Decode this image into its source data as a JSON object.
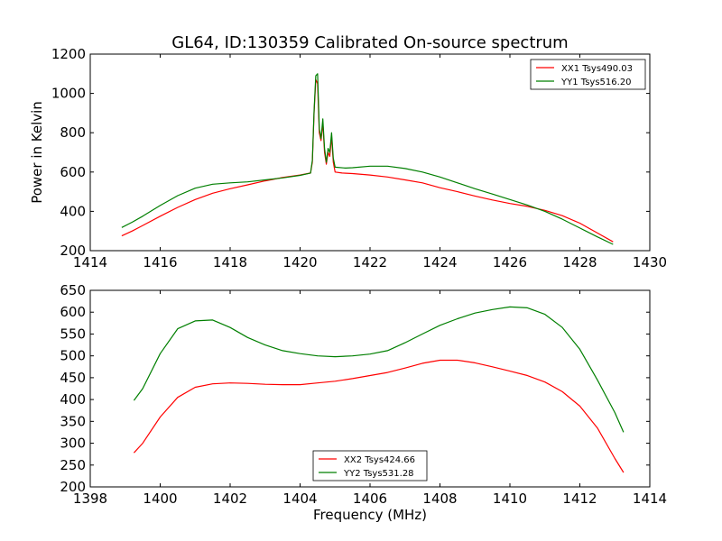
{
  "title": "GL64, ID:130359 Calibrated On-source spectrum",
  "colors": {
    "red": "#ff0000",
    "green": "#007f00"
  },
  "chart_data": [
    {
      "type": "line",
      "xlabel": "",
      "ylabel": "Power in Kelvin",
      "xlim": [
        1414,
        1430
      ],
      "ylim": [
        200,
        1200
      ],
      "xticks": [
        "1414",
        "1416",
        "1418",
        "1420",
        "1422",
        "1424",
        "1426",
        "1428",
        "1430"
      ],
      "yticks": [
        "200",
        "400",
        "600",
        "800",
        "1000",
        "1200"
      ],
      "legend_position": "upper right",
      "series": [
        {
          "name": "XX1 Tsys490.03",
          "color": "#ff0000",
          "points": [
            [
              1414.9,
              275
            ],
            [
              1415.2,
              300
            ],
            [
              1415.5,
              328
            ],
            [
              1416,
              375
            ],
            [
              1416.5,
              420
            ],
            [
              1417,
              460
            ],
            [
              1417.5,
              492
            ],
            [
              1418,
              515
            ],
            [
              1418.5,
              535
            ],
            [
              1419,
              555
            ],
            [
              1419.5,
              572
            ],
            [
              1420,
              585
            ],
            [
              1420.3,
              595
            ],
            [
              1420.35,
              650
            ],
            [
              1420.4,
              900
            ],
            [
              1420.45,
              1070
            ],
            [
              1420.5,
              1050
            ],
            [
              1420.55,
              800
            ],
            [
              1420.6,
              760
            ],
            [
              1420.65,
              850
            ],
            [
              1420.7,
              700
            ],
            [
              1420.75,
              640
            ],
            [
              1420.8,
              700
            ],
            [
              1420.85,
              680
            ],
            [
              1420.9,
              780
            ],
            [
              1420.95,
              650
            ],
            [
              1421,
              600
            ],
            [
              1421.2,
              595
            ],
            [
              1421.5,
              592
            ],
            [
              1422,
              585
            ],
            [
              1422.5,
              575
            ],
            [
              1423,
              560
            ],
            [
              1423.5,
              545
            ],
            [
              1424,
              520
            ],
            [
              1424.5,
              500
            ],
            [
              1425,
              478
            ],
            [
              1425.5,
              458
            ],
            [
              1426,
              440
            ],
            [
              1426.5,
              425
            ],
            [
              1427,
              405
            ],
            [
              1427.5,
              378
            ],
            [
              1428,
              340
            ],
            [
              1428.5,
              290
            ],
            [
              1428.95,
              245
            ]
          ]
        },
        {
          "name": "YY1 Tsys516.20",
          "color": "#007f00",
          "points": [
            [
              1414.9,
              318
            ],
            [
              1415.2,
              345
            ],
            [
              1415.5,
              375
            ],
            [
              1416,
              430
            ],
            [
              1416.5,
              480
            ],
            [
              1417,
              518
            ],
            [
              1417.5,
              538
            ],
            [
              1418,
              545
            ],
            [
              1418.5,
              550
            ],
            [
              1419,
              560
            ],
            [
              1419.5,
              570
            ],
            [
              1420,
              583
            ],
            [
              1420.3,
              595
            ],
            [
              1420.35,
              660
            ],
            [
              1420.4,
              910
            ],
            [
              1420.45,
              1090
            ],
            [
              1420.5,
              1100
            ],
            [
              1420.55,
              820
            ],
            [
              1420.6,
              770
            ],
            [
              1420.65,
              870
            ],
            [
              1420.7,
              720
            ],
            [
              1420.75,
              650
            ],
            [
              1420.8,
              720
            ],
            [
              1420.85,
              700
            ],
            [
              1420.9,
              800
            ],
            [
              1420.95,
              670
            ],
            [
              1421,
              625
            ],
            [
              1421.3,
              620
            ],
            [
              1421.5,
              622
            ],
            [
              1422,
              630
            ],
            [
              1422.5,
              630
            ],
            [
              1423,
              618
            ],
            [
              1423.5,
              600
            ],
            [
              1424,
              575
            ],
            [
              1424.5,
              545
            ],
            [
              1425,
              515
            ],
            [
              1425.5,
              488
            ],
            [
              1426,
              460
            ],
            [
              1426.5,
              432
            ],
            [
              1427,
              400
            ],
            [
              1427.5,
              360
            ],
            [
              1428,
              315
            ],
            [
              1428.5,
              270
            ],
            [
              1428.95,
              232
            ]
          ]
        }
      ]
    },
    {
      "type": "line",
      "xlabel": "Frequency (MHz)",
      "ylabel": "",
      "xlim": [
        1398,
        1414
      ],
      "ylim": [
        200,
        650
      ],
      "xticks": [
        "1398",
        "1400",
        "1402",
        "1404",
        "1406",
        "1408",
        "1410",
        "1412",
        "1414"
      ],
      "yticks": [
        "200",
        "250",
        "300",
        "350",
        "400",
        "450",
        "500",
        "550",
        "600",
        "650"
      ],
      "legend_position": "lower center",
      "series": [
        {
          "name": "XX2 Tsys424.66",
          "color": "#ff0000",
          "points": [
            [
              1399.25,
              278
            ],
            [
              1399.5,
              300
            ],
            [
              1400,
              360
            ],
            [
              1400.5,
              405
            ],
            [
              1401,
              428
            ],
            [
              1401.5,
              436
            ],
            [
              1402,
              438
            ],
            [
              1402.5,
              437
            ],
            [
              1403,
              435
            ],
            [
              1403.5,
              434
            ],
            [
              1404,
              434
            ],
            [
              1404.5,
              438
            ],
            [
              1405,
              442
            ],
            [
              1405.5,
              448
            ],
            [
              1406,
              455
            ],
            [
              1406.5,
              462
            ],
            [
              1407,
              472
            ],
            [
              1407.5,
              483
            ],
            [
              1408,
              490
            ],
            [
              1408.5,
              490
            ],
            [
              1409,
              484
            ],
            [
              1409.5,
              475
            ],
            [
              1410,
              465
            ],
            [
              1410.5,
              455
            ],
            [
              1411,
              440
            ],
            [
              1411.5,
              418
            ],
            [
              1412,
              385
            ],
            [
              1412.5,
              335
            ],
            [
              1413,
              265
            ],
            [
              1413.25,
              233
            ]
          ]
        },
        {
          "name": "YY2 Tsys531.28",
          "color": "#007f00",
          "points": [
            [
              1399.25,
              398
            ],
            [
              1399.5,
              425
            ],
            [
              1400,
              505
            ],
            [
              1400.5,
              562
            ],
            [
              1401,
              580
            ],
            [
              1401.5,
              582
            ],
            [
              1402,
              565
            ],
            [
              1402.5,
              542
            ],
            [
              1403,
              525
            ],
            [
              1403.5,
              512
            ],
            [
              1404,
              505
            ],
            [
              1404.5,
              500
            ],
            [
              1405,
              498
            ],
            [
              1405.5,
              500
            ],
            [
              1406,
              504
            ],
            [
              1406.5,
              512
            ],
            [
              1407,
              530
            ],
            [
              1407.5,
              550
            ],
            [
              1408,
              570
            ],
            [
              1408.5,
              585
            ],
            [
              1409,
              598
            ],
            [
              1409.5,
              606
            ],
            [
              1410,
              612
            ],
            [
              1410.5,
              610
            ],
            [
              1411,
              595
            ],
            [
              1411.5,
              565
            ],
            [
              1412,
              515
            ],
            [
              1412.5,
              445
            ],
            [
              1413,
              370
            ],
            [
              1413.25,
              325
            ]
          ]
        }
      ]
    }
  ]
}
